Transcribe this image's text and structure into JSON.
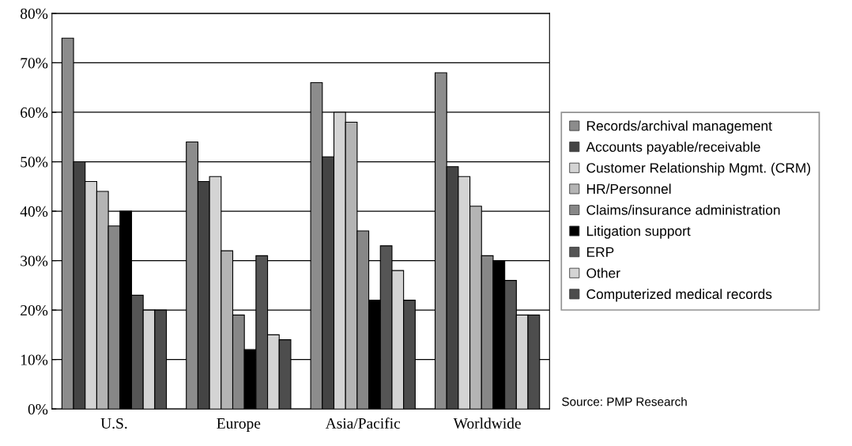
{
  "chart_data": {
    "type": "bar",
    "categories": [
      "U.S.",
      "Europe",
      "Asia/Pacific",
      "Worldwide"
    ],
    "series": [
      {
        "name": "Records/archival management",
        "color": "#8c8c8c",
        "values": [
          75,
          54,
          66,
          68
        ]
      },
      {
        "name": "Accounts payable/receivable",
        "color": "#444444",
        "values": [
          50,
          46,
          51,
          49
        ]
      },
      {
        "name": "Customer Relationship Mgmt. (CRM)",
        "color": "#d4d4d4",
        "values": [
          46,
          47,
          60,
          47
        ]
      },
      {
        "name": "HR/Personnel",
        "color": "#b4b4b4",
        "values": [
          44,
          32,
          58,
          41
        ]
      },
      {
        "name": "Claims/insurance administration",
        "color": "#878787",
        "values": [
          37,
          19,
          36,
          31
        ]
      },
      {
        "name": "Litigation support",
        "color": "#000000",
        "values": [
          40,
          12,
          22,
          30
        ]
      },
      {
        "name": "ERP",
        "color": "#555555",
        "values": [
          23,
          31,
          33,
          26
        ]
      },
      {
        "name": "Other",
        "color": "#d4d4d4",
        "values": [
          20,
          15,
          28,
          19
        ]
      },
      {
        "name": "Computerized medical records",
        "color": "#4d4d4d",
        "values": [
          20,
          14,
          22,
          19
        ]
      }
    ],
    "ylim": [
      0,
      80
    ],
    "yticks": [
      {
        "value": 0,
        "label": "0%"
      },
      {
        "value": 10,
        "label": "10%"
      },
      {
        "value": 20,
        "label": "20%"
      },
      {
        "value": 30,
        "label": "30%"
      },
      {
        "value": 40,
        "label": "40%"
      },
      {
        "value": 50,
        "label": "50%"
      },
      {
        "value": 60,
        "label": "60%"
      },
      {
        "value": 70,
        "label": "70%"
      },
      {
        "value": 80,
        "label": "80%"
      }
    ],
    "grid": "y",
    "legend": "right",
    "annotations": [
      "Source: PMP Research"
    ]
  }
}
